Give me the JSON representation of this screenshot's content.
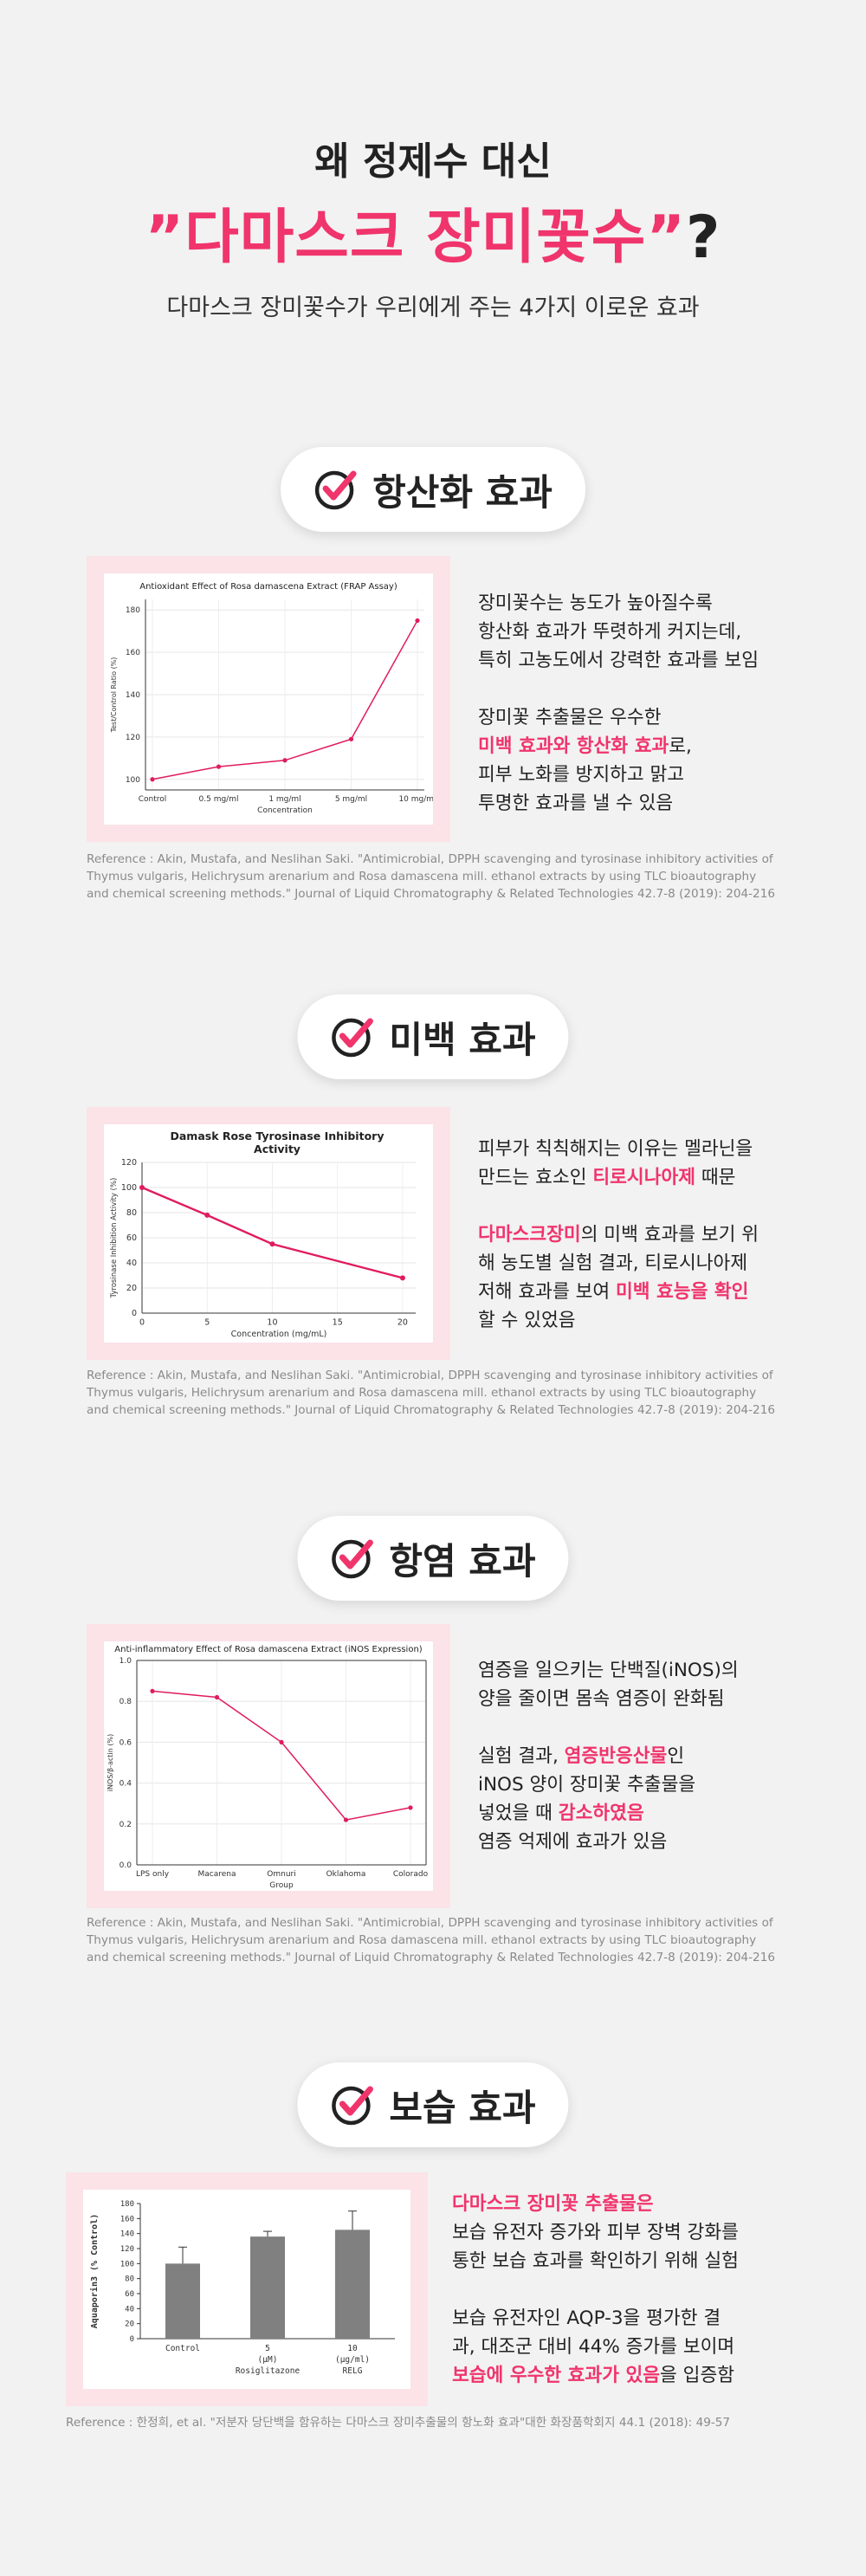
{
  "hero": {
    "line1": "왜 정제수 대신",
    "line2_main": "”다마스크 장미꽃수”",
    "line2_q": "?",
    "line3": "다마스크 장미꽃수가 우리에게 주는 4가지 이로운 효과"
  },
  "colors": {
    "accent": "#f0346c",
    "pink_bg": "#fbe3e8",
    "line": "#e01c5c"
  },
  "sections": [
    {
      "title": "항산화 효과",
      "icon": "checkmark-circle-icon",
      "desc": [
        [
          "장미꽃수는 농도가 높아질수록",
          "항산화 효과가 뚜렷하게 커지는데,",
          "특히 고농도에서 강력한 효과를 보임"
        ],
        [
          "장미꽃 추출물은 우수한"
        ],
        [
          "피부 노화를 방지하고 맑고",
          "투명한 효과를 낼 수 있음"
        ]
      ],
      "desc_hl": {
        "hl1": "미백 효과와 항산화 효과",
        "after": "로,"
      },
      "reference": "Reference : Akin, Mustafa, and Neslihan Saki. \"Antimicrobial, DPPH scavenging and tyrosinase inhibitory activities of Thymus vulgaris, Helichrysum arenarium and Rosa damascena mill. ethanol extracts by using TLC bioautography and chemical screening methods.\" Journal of Liquid Chromatography & Related Technologies  42.7-8 (2019): 204-216"
    },
    {
      "title": "미백 효과",
      "icon": "checkmark-circle-icon",
      "desc_a": "피부가 칙칙해지는 이유는 멜라닌을",
      "desc_b": "만드는 효소인 ",
      "desc_b_hl": "티로시나아제",
      "desc_b_end": " 때문",
      "desc_c_hl": "다마스크장미",
      "desc_c": "의 미백 효과를 보기 위",
      "desc_d": "해 농도별 실험 결과, 티로시나아제",
      "desc_e": "저해 효과를 보여 ",
      "desc_e_hl": "미백 효능을 확인",
      "desc_f": "할 수 있었음",
      "reference": "Reference : Akin, Mustafa, and Neslihan Saki. \"Antimicrobial, DPPH scavenging and tyrosinase inhibitory activities of Thymus vulgaris, Helichrysum arenarium and Rosa damascena mill. ethanol extracts by using TLC bioautography and chemical screening methods.\" Journal of Liquid Chromatography & Related Technologies  42.7-8 (2019): 204-216"
    },
    {
      "title": "항염 효과",
      "icon": "checkmark-circle-icon",
      "desc_a": "염증을 일으키는 단백질(iNOS)의",
      "desc_b": "양을 줄이면 몸속 염증이 완화됨",
      "desc_c": "실험 결과, ",
      "desc_c_hl": "염증반응산물",
      "desc_c_end": "인",
      "desc_d": "iNOS 양이 장미꽃 추출물을",
      "desc_e": "넣었을 때 ",
      "desc_e_hl": "감소하였음",
      "desc_f": "염증 억제에 효과가 있음",
      "reference": "Reference : Akin, Mustafa, and Neslihan Saki. \"Antimicrobial, DPPH scavenging and tyrosinase inhibitory activities of Thymus vulgaris, Helichrysum arenarium and Rosa damascena mill. ethanol extracts by using TLC bioautography and chemical screening methods.\" Journal of Liquid Chromatography & Related Technologies  42.7-8 (2019): 204-216"
    },
    {
      "title": "보습 효과",
      "icon": "checkmark-circle-icon",
      "desc_a_hl": "다마스크 장미꽃 추출물은",
      "desc_b": "보습 유전자 증가와 피부 장벽 강화를",
      "desc_c": "통한 보습 효과를 확인하기 위해 실험",
      "desc_d": "보습 유전자인 AQP-3을 평가한 결",
      "desc_e": "과, 대조군 대비 44% 증가를 보이며",
      "desc_f_hl": "보습에 우수한 효과가 있음",
      "desc_f": "을 입증함",
      "reference": "Reference : 한정희, et al. \"저분자 당단백을 함유하는 다마스크 장미추출물의 항노화 효과\"대한 화장품학회지 44.1 (2018): 49-57"
    }
  ],
  "chart_data": [
    {
      "type": "line",
      "title": "Antioxidant Effect of Rosa damascena Extract (FRAP Assay)",
      "xlabel": "Concentration",
      "ylabel": "Test/Control Ratio (%)",
      "categories": [
        "Control",
        "0.5 mg/ml",
        "1 mg/ml",
        "5 mg/ml",
        "10 mg/ml"
      ],
      "values": [
        100,
        106,
        109,
        119,
        175
      ],
      "ylim": [
        95,
        185
      ],
      "yticks": [
        100,
        120,
        140,
        160,
        180
      ],
      "grid": true
    },
    {
      "type": "line",
      "title": "Damask Rose Tyrosinase Inhibitory Activity",
      "xlabel": "Concentration (mg/mL)",
      "ylabel": "Tyrosinase Inhibition Activity (%)",
      "x": [
        0,
        5,
        10,
        20
      ],
      "values": [
        100,
        78,
        55,
        28
      ],
      "xlim": [
        0,
        21
      ],
      "ylim": [
        0,
        120
      ],
      "xticks": [
        0,
        5,
        10,
        15,
        20
      ],
      "yticks": [
        0,
        20,
        40,
        60,
        80,
        100,
        120
      ],
      "grid": true
    },
    {
      "type": "line",
      "title": "Anti-inflammatory Effect of Rosa damascena Extract (iNOS Expression)",
      "xlabel": "Group",
      "ylabel": "iNOS/β-actin (%)",
      "categories": [
        "LPS only",
        "Macarena",
        "Omnuri",
        "Oklahoma",
        "Colorado"
      ],
      "values": [
        0.85,
        0.82,
        0.6,
        0.22,
        0.28
      ],
      "ylim": [
        0,
        1.0
      ],
      "yticks": [
        0.0,
        0.2,
        0.4,
        0.6,
        0.8,
        1.0
      ],
      "grid": true
    },
    {
      "type": "bar",
      "ylabel": "Aquaporin3 (% Control)",
      "categories": [
        "Control",
        "5",
        "10"
      ],
      "sublabels": [
        "",
        "(μM)",
        "(μg/ml)"
      ],
      "sublabels2": [
        "",
        "Rosiglitazone",
        "RELG"
      ],
      "values": [
        100,
        136,
        145
      ],
      "errors": [
        22,
        7,
        25
      ],
      "ylim": [
        0,
        180
      ],
      "yticks": [
        0,
        20,
        40,
        60,
        80,
        100,
        120,
        140,
        160,
        180
      ]
    }
  ]
}
